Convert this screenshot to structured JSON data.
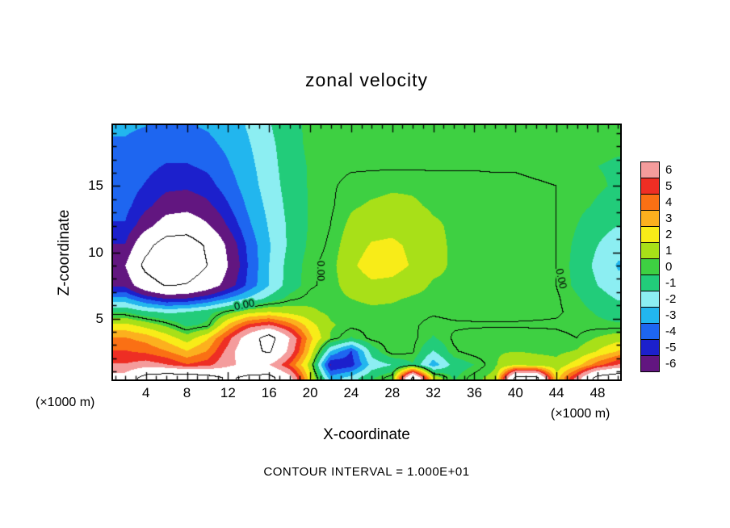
{
  "chart_data": {
    "type": "heatmap",
    "title": "zonal velocity",
    "xlabel": "X-coordinate",
    "ylabel": "Z-coordinate",
    "x_unit_label_left": "(×1000 m)",
    "x_unit_label_right": "(×1000 m)",
    "footnote": "CONTOUR INTERVAL = 1.000E+01",
    "x_range": [
      0.8,
      50.2
    ],
    "z_range": [
      0.4,
      19.6
    ],
    "x_ticks_major": [
      4,
      8,
      12,
      16,
      20,
      24,
      28,
      32,
      36,
      40,
      44,
      48
    ],
    "x_tick_minor_step": 1,
    "z_ticks_major": [
      5,
      10,
      15
    ],
    "z_tick_minor_step": 1,
    "colorbar": {
      "labels": [
        "6",
        "5",
        "4",
        "3",
        "2",
        "1",
        "0",
        "-1",
        "-2",
        "-3",
        "-4",
        "-5",
        "-6"
      ],
      "band_colors": [
        "#f49c9c",
        "#ee2e24",
        "#fa7014",
        "#fcb01e",
        "#f8ec18",
        "#a8e018",
        "#3ed042",
        "#22cc7a",
        "#8ceef2",
        "#22b6ee",
        "#1e66f0",
        "#1c20cc",
        "#621680"
      ],
      "out_of_range_color": "#ffffff"
    },
    "contour": {
      "interval": 10,
      "levels": [
        0,
        10,
        -10
      ],
      "label_text": "0.00",
      "labels": [
        {
          "x": 13.6,
          "z": 6.0,
          "rot": -12
        },
        {
          "x": 21.0,
          "z": 8.6,
          "rot": 90
        },
        {
          "x": 44.4,
          "z": 8.0,
          "rot": 78
        }
      ]
    },
    "grid": {
      "x": [
        2,
        4,
        6,
        8,
        10,
        12,
        14,
        16,
        18,
        20,
        22,
        24,
        26,
        28,
        30,
        32,
        34,
        36,
        38,
        40,
        42,
        44,
        46,
        48,
        50
      ],
      "z": [
        19.5,
        18,
        16.5,
        15,
        13.5,
        12,
        10.5,
        9,
        7.5,
        6.5,
        5.5,
        4.5,
        3.5,
        2.5,
        1.5,
        0.5
      ],
      "values": [
        [
          -3.4,
          -3.5,
          -3.6,
          -3.6,
          -3.4,
          -3.0,
          -2.4,
          -1.6,
          -0.8,
          -0.3,
          -0.3,
          -0.2,
          -0.1,
          -0.1,
          -0.1,
          -0.1,
          -0.1,
          -0.1,
          -0.1,
          -0.1,
          -0.2,
          -0.2,
          -0.3,
          -0.3,
          -0.3
        ],
        [
          -3.6,
          -3.8,
          -4.0,
          -4.0,
          -3.8,
          -3.3,
          -2.6,
          -1.8,
          -0.9,
          -0.3,
          -0.2,
          -0.2,
          -0.1,
          -0.1,
          -0.1,
          -0.1,
          -0.1,
          -0.1,
          -0.1,
          -0.1,
          -0.2,
          -0.2,
          -0.3,
          -0.3,
          -0.4
        ],
        [
          -3.8,
          -4.2,
          -4.6,
          -4.6,
          -4.3,
          -3.6,
          -2.8,
          -1.9,
          -1.0,
          -0.4,
          -0.2,
          -0.1,
          -0.1,
          -0.1,
          -0.1,
          -0.1,
          -0.1,
          -0.1,
          -0.1,
          -0.1,
          -0.2,
          -0.3,
          -0.4,
          -0.5,
          -0.6
        ],
        [
          -4.0,
          -4.6,
          -5.2,
          -5.3,
          -4.9,
          -4.0,
          -3.0,
          -2.0,
          -1.1,
          -0.4,
          -0.1,
          0.2,
          0.3,
          0.4,
          0.4,
          0.3,
          0.3,
          0.3,
          0.2,
          0.2,
          0.1,
          0.0,
          -0.2,
          -0.4,
          -0.6
        ],
        [
          -4.2,
          -5.2,
          -6.2,
          -6.4,
          -5.8,
          -4.6,
          -3.3,
          -2.2,
          -1.2,
          -0.4,
          -0.1,
          0.4,
          0.6,
          0.7,
          0.6,
          0.4,
          0.4,
          0.4,
          0.3,
          0.3,
          0.2,
          0.0,
          -0.3,
          -0.6,
          -0.9
        ],
        [
          -4.6,
          -6.4,
          -8.0,
          -8.4,
          -7.2,
          -5.4,
          -3.7,
          -2.4,
          -1.3,
          -0.4,
          0.0,
          0.7,
          1.1,
          1.2,
          1.0,
          0.6,
          0.4,
          0.4,
          0.3,
          0.3,
          0.2,
          0.0,
          -0.5,
          -1.1,
          -1.5
        ],
        [
          -5.6,
          -9.0,
          -11.6,
          -11.8,
          -9.6,
          -6.6,
          -4.2,
          -2.6,
          -1.3,
          -0.3,
          0.1,
          1.0,
          1.6,
          1.7,
          1.3,
          0.7,
          0.4,
          0.4,
          0.3,
          0.3,
          0.2,
          0.0,
          -0.7,
          -1.5,
          -2.2
        ],
        [
          -7.0,
          -10.8,
          -12.6,
          -12.2,
          -10.0,
          -7.0,
          -4.4,
          -2.5,
          -1.1,
          -0.1,
          0.2,
          1.3,
          2.0,
          1.9,
          1.4,
          0.7,
          0.4,
          0.4,
          0.3,
          0.3,
          0.2,
          0.0,
          -0.8,
          -1.8,
          -2.6
        ],
        [
          -5.8,
          -8.6,
          -10.2,
          -9.8,
          -8.2,
          -6.2,
          -4.2,
          -2.5,
          -1.0,
          -0.1,
          0.2,
          0.9,
          1.3,
          1.2,
          0.8,
          0.4,
          0.4,
          0.4,
          0.3,
          0.3,
          0.2,
          0.0,
          -0.7,
          -1.5,
          -2.2
        ],
        [
          -3.2,
          -4.6,
          -5.6,
          -5.4,
          -4.6,
          -3.4,
          -2.3,
          -1.2,
          -0.2,
          0.2,
          0.2,
          0.5,
          0.7,
          0.6,
          0.4,
          0.3,
          0.3,
          0.3,
          0.3,
          0.3,
          0.2,
          0.1,
          -0.4,
          -1.0,
          -1.6
        ],
        [
          -0.6,
          -1.3,
          -1.7,
          -1.5,
          -0.9,
          0.1,
          1.1,
          1.5,
          1.1,
          0.7,
          0.3,
          0.2,
          0.3,
          0.3,
          0.2,
          0.1,
          0.2,
          0.3,
          0.3,
          0.3,
          0.2,
          0.1,
          -0.2,
          -0.6,
          -0.9
        ],
        [
          1.8,
          1.1,
          0.3,
          -0.7,
          -0.3,
          2.6,
          4.8,
          5.6,
          4.0,
          1.9,
          0.6,
          0.2,
          0.2,
          0.2,
          0.1,
          -0.2,
          -0.1,
          -0.1,
          -0.1,
          -0.1,
          -0.1,
          -0.1,
          -0.2,
          -0.3,
          -0.4
        ],
        [
          3.6,
          3.1,
          2.1,
          1.0,
          2.4,
          5.0,
          8.2,
          11.4,
          7.0,
          2.8,
          0.4,
          -0.6,
          0.2,
          0.4,
          0.2,
          -0.6,
          0.1,
          0.3,
          0.4,
          0.4,
          0.3,
          0.2,
          0.0,
          0.6,
          1.1
        ],
        [
          4.6,
          4.3,
          3.6,
          2.6,
          3.6,
          6.0,
          9.0,
          10.4,
          6.4,
          2.2,
          -2.6,
          -4.6,
          -1.1,
          0.4,
          0.1,
          -1.6,
          -0.1,
          0.3,
          0.4,
          0.5,
          0.4,
          0.3,
          0.6,
          1.6,
          2.6
        ],
        [
          5.6,
          6.1,
          5.6,
          4.6,
          5.1,
          6.6,
          7.6,
          7.0,
          4.4,
          1.0,
          -5.6,
          -5.0,
          -2.1,
          -1.5,
          -0.6,
          -3.1,
          -1.1,
          -0.5,
          0.4,
          1.4,
          1.0,
          0.8,
          2.1,
          4.1,
          5.6
        ],
        [
          8.0,
          11.2,
          12.0,
          12.0,
          11.2,
          9.6,
          10.6,
          11.0,
          7.8,
          1.8,
          -3.0,
          -2.0,
          -0.6,
          0.4,
          10.6,
          1.4,
          -0.6,
          0.3,
          0.8,
          10.6,
          11.0,
          2.0,
          6.0,
          11.0,
          12.0
        ]
      ]
    }
  }
}
